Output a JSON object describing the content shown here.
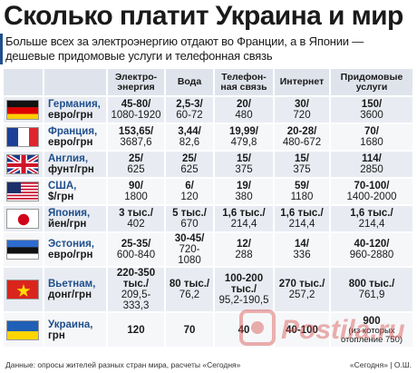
{
  "title": "Сколько платит Украина и мир",
  "subtitle": "Больше всех за электроэнергию отдают во Франции, а в Японии — дешевые придомовые услуги и телефонная связь",
  "headers": [
    "Электро-энергия",
    "Вода",
    "Телефон-ная связь",
    "Интернет",
    "Придомовые услуги"
  ],
  "rows": [
    {
      "country": "Германия,",
      "currency": "евро/грн",
      "flag": "germany",
      "cells": [
        [
          "45-80/",
          "1080-1920"
        ],
        [
          "2,5-3/",
          "60-72"
        ],
        [
          "20/",
          "480"
        ],
        [
          "30/",
          "720"
        ],
        [
          "150/",
          "3600"
        ]
      ]
    },
    {
      "country": "Франция,",
      "currency": "евро/грн",
      "flag": "france",
      "cells": [
        [
          "153,65/",
          "3687,6"
        ],
        [
          "3,44/",
          "82,6"
        ],
        [
          "19,99/",
          "479,8"
        ],
        [
          "20-28/",
          "480-672"
        ],
        [
          "70/",
          "1680"
        ]
      ]
    },
    {
      "country": "Англия,",
      "currency": "фунт/грн",
      "flag": "uk",
      "cells": [
        [
          "25/",
          "625"
        ],
        [
          "25/",
          "625"
        ],
        [
          "15/",
          "375"
        ],
        [
          "15/",
          "375"
        ],
        [
          "114/",
          "2850"
        ]
      ]
    },
    {
      "country": "США,",
      "currency": "$/грн",
      "flag": "usa",
      "cells": [
        [
          "90/",
          "1800"
        ],
        [
          "6/",
          "120"
        ],
        [
          "19/",
          "380"
        ],
        [
          "59/",
          "1180"
        ],
        [
          "70-100/",
          "1400-2000"
        ]
      ]
    },
    {
      "country": "Япония,",
      "currency": "йен/грн",
      "flag": "japan",
      "cells": [
        [
          "3 тыс./",
          "402"
        ],
        [
          "5 тыс./",
          "670"
        ],
        [
          "1,6 тыс./",
          "214,4"
        ],
        [
          "1,6 тыс./",
          "214,4"
        ],
        [
          "1,6 тыс./",
          "214,4"
        ]
      ]
    },
    {
      "country": "Эстония,",
      "currency": "евро/грн",
      "flag": "estonia",
      "cells": [
        [
          "25-35/",
          "600-840"
        ],
        [
          "30-45/",
          "720-1080"
        ],
        [
          "12/",
          "288"
        ],
        [
          "14/",
          "336"
        ],
        [
          "40-120/",
          "960-2880"
        ]
      ]
    },
    {
      "country": "Вьетнам,",
      "currency": "донг/грн",
      "flag": "vietnam",
      "cells": [
        [
          "220-350 тыс./",
          "209,5-333,3"
        ],
        [
          "80 тыс./",
          "76,2"
        ],
        [
          "100-200 тыс./",
          "95,2-190,5"
        ],
        [
          "270 тыс./",
          "257,2"
        ],
        [
          "800 тыс./",
          "761,9"
        ]
      ]
    },
    {
      "country": "Украина,",
      "currency": "грн",
      "flag": "ukraine",
      "cells": [
        [
          "120",
          ""
        ],
        [
          "70",
          ""
        ],
        [
          "40",
          ""
        ],
        [
          "40-100",
          ""
        ],
        [
          "900",
          "(из которых отопление 750)"
        ]
      ]
    }
  ],
  "footer": "Данные: опросы жителей разных стран мира, расчеты «Сегодня»",
  "footer_right": "«Сегодня» | О.Ш.",
  "watermark": "Postila.ru"
}
